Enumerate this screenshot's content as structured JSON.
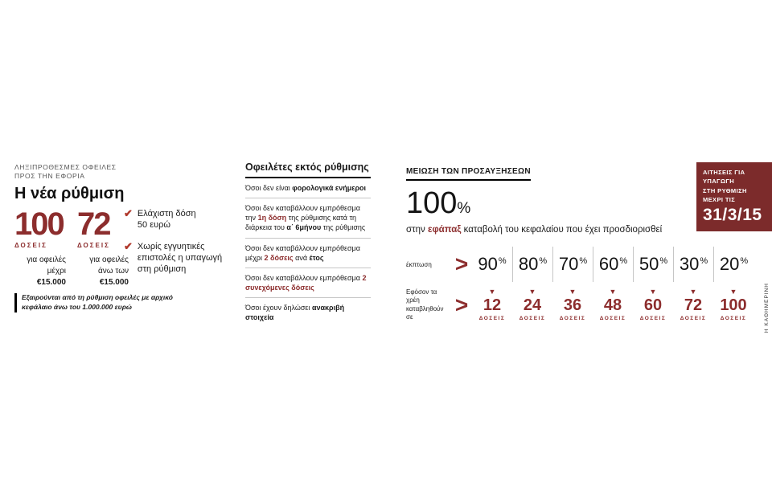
{
  "colors": {
    "accent": "#8c2d2d",
    "badge-bg": "#7c2b2b",
    "check": "#b0392c",
    "divider": "#c6c6c6",
    "text": "#1a1a1a",
    "muted": "#555555"
  },
  "icons": {
    "check": "✔",
    "chevron": ">",
    "down_arrow": "▼"
  },
  "brand": "Η ΚΑΘΗΜΕΡΙΝΗ",
  "left": {
    "kicker": [
      "ΛΗΞΙΠΡΟΘΕΣΜΕΣ ΟΦΕΙΛΕΣ",
      "ΠΡΟΣ ΤΗΝ ΕΦΟΡΙΑ"
    ],
    "title": "Η νέα ρύθμιση",
    "options": [
      {
        "number": "100",
        "unit": "ΔΟΣΕΙΣ",
        "desc": [
          "για οφειλές",
          "μέχρι"
        ],
        "amount": "€15.000"
      },
      {
        "number": "72",
        "unit": "ΔΟΣΕΙΣ",
        "desc": [
          "για οφειλές",
          "άνω των"
        ],
        "amount": "€15.000"
      }
    ],
    "bullets": [
      [
        "Ελάχιστη δόση",
        "50 ευρώ"
      ],
      [
        "Χωρίς εγγυητικές",
        "επιστολές η υπαγωγή",
        "στη ρύθμιση"
      ]
    ],
    "footnote": [
      "Εξαιρούνται από τη ρύθμιση οφειλές με αρχικό",
      "κεφάλαιο άνω του 1.000.000 ευρώ"
    ]
  },
  "excluded": {
    "title": "Οφειλέτες εκτός ρύθμισης",
    "items": [
      {
        "s0": "Όσοι δεν είναι ",
        "s1": "φορολογικά ενήμεροι"
      },
      {
        "s0": "Όσοι δεν καταβάλλουν εμπρόθεσμα την ",
        "s1": "1η δόση",
        "s2": " της ρύθμισης κατά τη διάρκεια του ",
        "s3": "α΄ 6μήνου",
        "s4": " της ρύθμισης"
      },
      {
        "s0": "Όσοι δεν καταβάλλουν εμπρόθεσμα μέχρι ",
        "s1": "2 δόσεις",
        "s2": " ανά ",
        "s3": "έτος"
      },
      {
        "s0": "Όσοι δεν καταβάλλουν εμπρόθεσμα ",
        "s1": "2 συνεχόμενες δόσεις"
      },
      {
        "s0": "Όσοι έχουν δηλώσει ",
        "s1": "ανακριβή στοιχεία"
      }
    ]
  },
  "reduction": {
    "title": "ΜΕΙΩΣΗ ΤΩΝ ΠΡΟΣΑΥΞΗΣΕΩΝ",
    "big_number": "100",
    "pct_sign": "%",
    "subtitle": {
      "s0": "στην ",
      "s1": "εφάπαξ",
      "s2": " καταβολή του κεφαλαίου που έχει προσδιορισθεί"
    },
    "discount_label": "έκπτωση",
    "installments_label": [
      "Εφόσον τα χρέη",
      "καταβληθούν σε"
    ],
    "doses_unit": "ΔΟΣΕΙΣ",
    "columns": [
      {
        "percent": "90",
        "doses": "12"
      },
      {
        "percent": "80",
        "doses": "24"
      },
      {
        "percent": "70",
        "doses": "36"
      },
      {
        "percent": "60",
        "doses": "48"
      },
      {
        "percent": "50",
        "doses": "60"
      },
      {
        "percent": "30",
        "doses": "72"
      },
      {
        "percent": "20",
        "doses": "100"
      }
    ]
  },
  "badge": {
    "lines": [
      "ΑΙΤΗΣΕΙΣ ΓΙΑ ΥΠΑΓΩΓΗ",
      "ΣΤΗ ΡΥΘΜΙΣΗ ΜΕΧΡΙ ΤΙΣ"
    ],
    "date": "31/3/15"
  },
  "chart_data": {
    "type": "table",
    "title": "ΜΕΙΩΣΗ ΤΩΝ ΠΡΟΣΑΥΞΗΣΕΩΝ",
    "columns": [
      "δόσεις",
      "έκπτωση %"
    ],
    "rows": [
      [
        "εφάπαξ",
        100
      ],
      [
        12,
        90
      ],
      [
        24,
        80
      ],
      [
        36,
        70
      ],
      [
        48,
        60
      ],
      [
        60,
        50
      ],
      [
        72,
        30
      ],
      [
        100,
        20
      ]
    ],
    "note": "100% έκπτωση προσαυξήσεων στην εφάπαξ καταβολή του κεφαλαίου"
  }
}
